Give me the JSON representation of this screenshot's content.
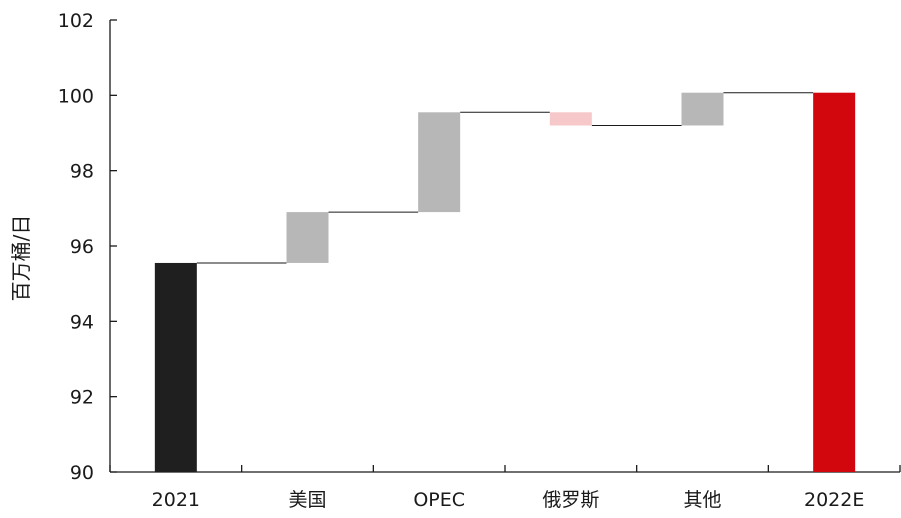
{
  "chart_data": {
    "type": "bar",
    "subtype": "waterfall",
    "title": "",
    "xlabel": "",
    "ylabel": "百万桶/日",
    "ylim": [
      90,
      102
    ],
    "yticks": [
      "90",
      "92",
      "94",
      "96",
      "98",
      "100",
      "102"
    ],
    "grid": false,
    "legend": "none",
    "categories": [
      "2021",
      "美国",
      "OPEC",
      "俄罗斯",
      "其他",
      "2022E"
    ],
    "bars": [
      {
        "category": "2021",
        "kind": "total",
        "start": 90,
        "end": 95.55,
        "color": "#1f1f1f"
      },
      {
        "category": "美国",
        "kind": "increase",
        "start": 95.55,
        "end": 96.9,
        "color": "#b7b7b7"
      },
      {
        "category": "OPEC",
        "kind": "increase",
        "start": 96.9,
        "end": 99.55,
        "color": "#b7b7b7"
      },
      {
        "category": "俄罗斯",
        "kind": "decrease",
        "start": 99.55,
        "end": 99.2,
        "color": "#f6c8ca"
      },
      {
        "category": "其他",
        "kind": "increase",
        "start": 99.2,
        "end": 100.07,
        "color": "#b7b7b7"
      },
      {
        "category": "2022E",
        "kind": "total",
        "start": 90,
        "end": 100.07,
        "color": "#d2070e"
      }
    ]
  }
}
